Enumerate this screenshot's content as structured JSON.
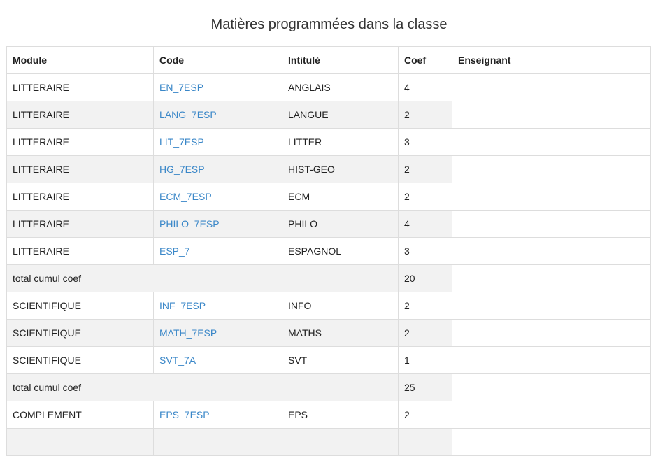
{
  "page_title": "Matières programmées dans la classe",
  "columns": [
    "Module",
    "Code",
    "Intitulé",
    "Coef",
    "Enseignant"
  ],
  "rows": [
    {
      "module": "LITTERAIRE",
      "code": "EN_7ESP",
      "title": "ANGLAIS",
      "coef": "4",
      "teacher": ""
    },
    {
      "module": "LITTERAIRE",
      "code": "LANG_7ESP",
      "title": "LANGUE",
      "coef": "2",
      "teacher": ""
    },
    {
      "module": "LITTERAIRE",
      "code": "LIT_7ESP",
      "title": "LITTER",
      "coef": "3",
      "teacher": ""
    },
    {
      "module": "LITTERAIRE",
      "code": "HG_7ESP",
      "title": "HIST-GEO",
      "coef": "2",
      "teacher": ""
    },
    {
      "module": "LITTERAIRE",
      "code": "ECM_7ESP",
      "title": "ECM",
      "coef": "2",
      "teacher": ""
    },
    {
      "module": "LITTERAIRE",
      "code": "PHILO_7ESP",
      "title": "PHILO",
      "coef": "4",
      "teacher": ""
    },
    {
      "module": "LITTERAIRE",
      "code": "ESP_7",
      "title": "ESPAGNOL",
      "coef": "3",
      "teacher": ""
    },
    {
      "total_label": "total cumul coef",
      "coef": "20"
    },
    {
      "module": "SCIENTIFIQUE",
      "code": "INF_7ESP",
      "title": "INFO",
      "coef": "2",
      "teacher": ""
    },
    {
      "module": "SCIENTIFIQUE",
      "code": "MATH_7ESP",
      "title": "MATHS",
      "coef": "2",
      "teacher": ""
    },
    {
      "module": "SCIENTIFIQUE",
      "code": "SVT_7A",
      "title": "SVT",
      "coef": "1",
      "teacher": ""
    },
    {
      "total_label": "total cumul coef",
      "coef": "25"
    },
    {
      "module": "COMPLEMENT",
      "code": "EPS_7ESP",
      "title": "EPS",
      "coef": "2",
      "teacher": ""
    },
    {
      "module": "",
      "code": "",
      "title": "",
      "coef": "",
      "teacher": ""
    }
  ]
}
